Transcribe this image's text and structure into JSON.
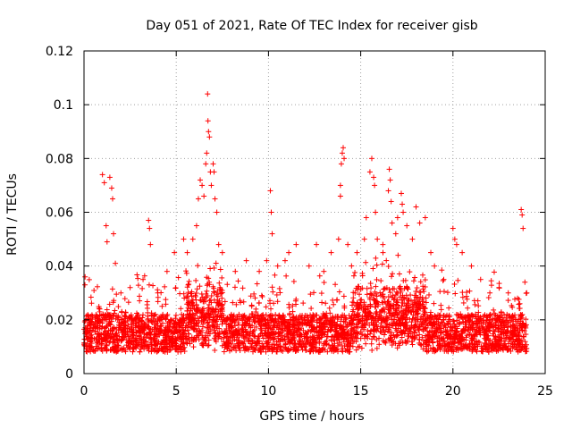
{
  "chart_data": {
    "type": "scatter",
    "title": "Day 051 of 2021, Rate Of TEC Index for receiver gisb",
    "xlabel": "GPS time / hours",
    "ylabel": "ROTI / TECUs",
    "xlim": [
      0,
      25
    ],
    "ylim": [
      0,
      0.12
    ],
    "x_ticks": [
      0,
      5,
      10,
      15,
      20,
      25
    ],
    "y_ticks": [
      0,
      0.02,
      0.04,
      0.06,
      0.08,
      0.1,
      0.12
    ],
    "x_tick_labels": [
      "0",
      "5",
      "10",
      "15",
      "20",
      "25"
    ],
    "y_tick_labels": [
      "0",
      "0.02",
      "0.04",
      "0.06",
      "0.08",
      "0.1",
      "0.12"
    ],
    "grid": true,
    "legend": "none",
    "marker": "plus",
    "series": [
      {
        "color": "#ff0000",
        "points": [
          [
            0.05,
            0.033
          ],
          [
            0.3,
            0.02
          ],
          [
            0.6,
            0.019
          ],
          [
            1.0,
            0.074
          ],
          [
            1.1,
            0.071
          ],
          [
            1.2,
            0.055
          ],
          [
            1.25,
            0.049
          ],
          [
            1.4,
            0.073
          ],
          [
            1.5,
            0.069
          ],
          [
            1.55,
            0.065
          ],
          [
            1.6,
            0.052
          ],
          [
            1.7,
            0.041
          ],
          [
            2.0,
            0.03
          ],
          [
            2.5,
            0.032
          ],
          [
            3.2,
            0.035
          ],
          [
            3.5,
            0.057
          ],
          [
            3.55,
            0.054
          ],
          [
            3.6,
            0.048
          ],
          [
            4.0,
            0.03
          ],
          [
            4.5,
            0.038
          ],
          [
            4.9,
            0.045
          ],
          [
            5.4,
            0.05
          ],
          [
            5.6,
            0.045
          ],
          [
            5.9,
            0.05
          ],
          [
            6.1,
            0.055
          ],
          [
            6.2,
            0.065
          ],
          [
            6.3,
            0.072
          ],
          [
            6.4,
            0.07
          ],
          [
            6.5,
            0.066
          ],
          [
            6.6,
            0.078
          ],
          [
            6.65,
            0.082
          ],
          [
            6.7,
            0.104
          ],
          [
            6.72,
            0.094
          ],
          [
            6.75,
            0.09
          ],
          [
            6.8,
            0.088
          ],
          [
            6.85,
            0.075
          ],
          [
            6.9,
            0.07
          ],
          [
            7.0,
            0.078
          ],
          [
            7.05,
            0.075
          ],
          [
            7.1,
            0.065
          ],
          [
            7.2,
            0.06
          ],
          [
            7.3,
            0.048
          ],
          [
            7.5,
            0.045
          ],
          [
            8.2,
            0.038
          ],
          [
            8.8,
            0.042
          ],
          [
            9.5,
            0.038
          ],
          [
            9.9,
            0.042
          ],
          [
            10.1,
            0.068
          ],
          [
            10.15,
            0.06
          ],
          [
            10.2,
            0.052
          ],
          [
            10.5,
            0.04
          ],
          [
            10.9,
            0.042
          ],
          [
            11.1,
            0.045
          ],
          [
            11.5,
            0.048
          ],
          [
            12.2,
            0.04
          ],
          [
            12.6,
            0.048
          ],
          [
            13.0,
            0.038
          ],
          [
            13.4,
            0.045
          ],
          [
            13.8,
            0.05
          ],
          [
            13.9,
            0.07
          ],
          [
            13.95,
            0.078
          ],
          [
            14.0,
            0.082
          ],
          [
            14.05,
            0.084
          ],
          [
            14.1,
            0.08
          ],
          [
            13.9,
            0.066
          ],
          [
            14.3,
            0.048
          ],
          [
            14.8,
            0.045
          ],
          [
            15.2,
            0.05
          ],
          [
            15.3,
            0.058
          ],
          [
            15.5,
            0.075
          ],
          [
            15.6,
            0.08
          ],
          [
            15.7,
            0.073
          ],
          [
            15.75,
            0.07
          ],
          [
            15.8,
            0.06
          ],
          [
            15.9,
            0.05
          ],
          [
            16.2,
            0.048
          ],
          [
            16.5,
            0.068
          ],
          [
            16.55,
            0.076
          ],
          [
            16.6,
            0.072
          ],
          [
            16.65,
            0.064
          ],
          [
            16.7,
            0.056
          ],
          [
            16.9,
            0.052
          ],
          [
            17.0,
            0.058
          ],
          [
            17.2,
            0.067
          ],
          [
            17.25,
            0.063
          ],
          [
            17.3,
            0.06
          ],
          [
            17.5,
            0.055
          ],
          [
            17.8,
            0.05
          ],
          [
            18.0,
            0.062
          ],
          [
            18.2,
            0.056
          ],
          [
            18.5,
            0.058
          ],
          [
            18.8,
            0.045
          ],
          [
            19.0,
            0.04
          ],
          [
            19.5,
            0.035
          ],
          [
            20.0,
            0.054
          ],
          [
            20.1,
            0.05
          ],
          [
            20.2,
            0.048
          ],
          [
            20.5,
            0.045
          ],
          [
            21.0,
            0.04
          ],
          [
            21.5,
            0.035
          ],
          [
            22.0,
            0.03
          ],
          [
            22.5,
            0.032
          ],
          [
            23.0,
            0.03
          ],
          [
            23.5,
            0.028
          ],
          [
            23.7,
            0.061
          ],
          [
            23.75,
            0.059
          ],
          [
            23.8,
            0.054
          ],
          [
            23.9,
            0.034
          ],
          [
            24.0,
            0.03
          ]
        ]
      }
    ]
  }
}
